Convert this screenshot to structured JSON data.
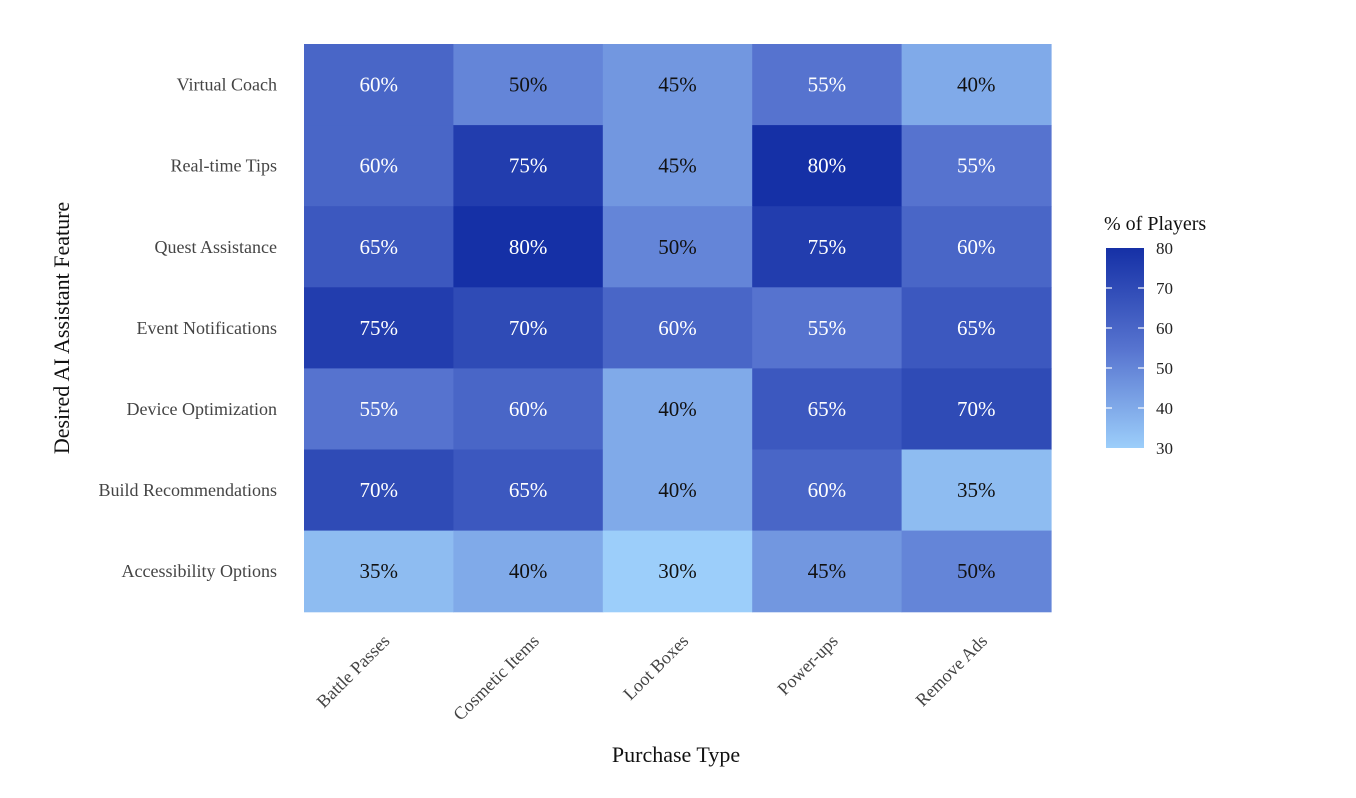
{
  "chart_data": {
    "type": "heatmap",
    "title": "",
    "xlabel": "Purchase Type",
    "ylabel": "Desired AI Assistant Feature",
    "x_categories": [
      "Battle Passes",
      "Cosmetic Items",
      "Loot Boxes",
      "Power-ups",
      "Remove Ads"
    ],
    "y_categories": [
      "Virtual Coach",
      "Real-time Tips",
      "Quest Assistance",
      "Event Notifications",
      "Device Optimization",
      "Build Recommendations",
      "Accessibility Options"
    ],
    "values": [
      [
        60,
        50,
        45,
        55,
        40
      ],
      [
        60,
        75,
        45,
        80,
        55
      ],
      [
        65,
        80,
        50,
        75,
        60
      ],
      [
        75,
        70,
        60,
        55,
        65
      ],
      [
        55,
        60,
        40,
        65,
        70
      ],
      [
        70,
        65,
        40,
        60,
        35
      ],
      [
        35,
        40,
        30,
        45,
        50
      ]
    ],
    "value_suffix": "%",
    "colorbar": {
      "title": "% of Players",
      "min": 30,
      "max": 80,
      "ticks": [
        30,
        40,
        50,
        60,
        70,
        80
      ],
      "low_color": "#9ccefa",
      "mid_color": "#5673cf",
      "high_color": "#1530a6"
    },
    "label_colors": {
      "dark_text": "#111111",
      "light_text": "#ffffff"
    },
    "legend_position": "right"
  }
}
